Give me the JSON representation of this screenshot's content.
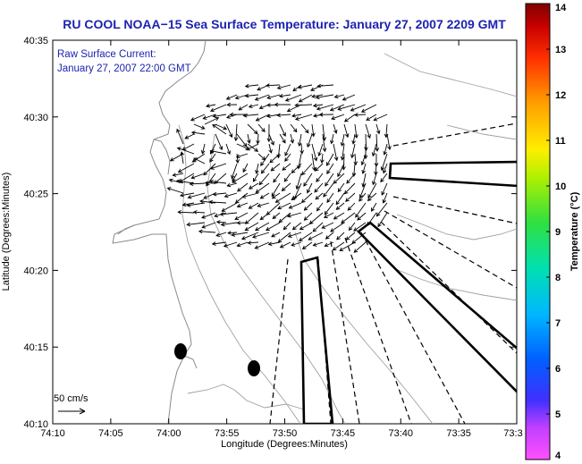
{
  "map": {
    "title": "RU COOL  NOAA−15  Sea Surface Temperature:  January 27, 2007 2209 GMT",
    "current_label": "Raw Surface Current:",
    "current_time": "January 27, 2007 22:00 GMT",
    "scale_label": "50 cm/s",
    "xlabel": "Longitude (Degrees:Minutes)",
    "ylabel": "Latitude (Degrees:Minutes)",
    "x_ticks": [
      "74:10",
      "74:05",
      "74:00",
      "73:55",
      "73:50",
      "73:45",
      "73:40",
      "73:35",
      "73:3"
    ],
    "y_ticks": [
      "40:35",
      "40:30",
      "40:25",
      "40:20",
      "40:15",
      "40:10"
    ]
  },
  "colorbar": {
    "label": "Temperature (°C)",
    "ticks": [
      "14",
      "13",
      "12",
      "11",
      "10",
      "9",
      "8",
      "7",
      "6",
      "5",
      "4"
    ],
    "range": [
      4,
      14
    ],
    "colors": [
      "#ff50ff",
      "#c040ff",
      "#3030ff",
      "#0078ff",
      "#00c0ff",
      "#00e0a0",
      "#40e040",
      "#c0f000",
      "#ffee00",
      "#ffa000",
      "#ff4000",
      "#d00000",
      "#800000"
    ]
  },
  "icons": {
    "vector-arrows": "current-vector-icon",
    "station-markers": "station-dot-icon"
  }
}
